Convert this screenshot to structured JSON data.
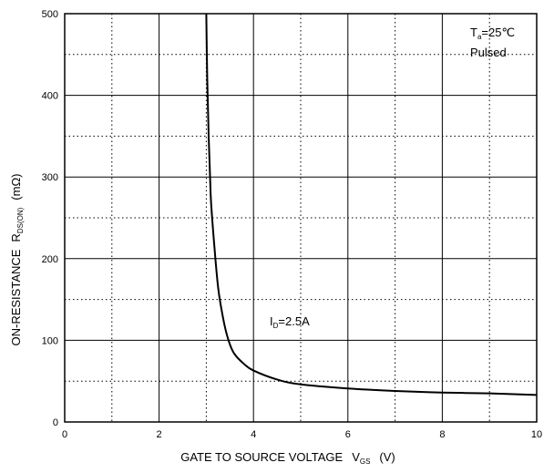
{
  "chart_data": {
    "type": "line",
    "title": "",
    "xlabel": {
      "main": "GATE TO SOURCE VOLTAGE",
      "sym": "V",
      "sub": "GS",
      "unit": "(V)"
    },
    "ylabel": {
      "main": "ON-RESISTANCE",
      "sym": "R",
      "sub": "DS(ON)",
      "unit": "(mΩ)"
    },
    "xlim": [
      0,
      10
    ],
    "ylim": [
      0,
      500
    ],
    "xticks": [
      "0",
      "2",
      "4",
      "6",
      "8",
      "10"
    ],
    "yticks": [
      "0",
      "100",
      "200",
      "300",
      "400",
      "500"
    ],
    "grid": "solid major, dotted minor",
    "conditions": {
      "ta_sym": "T",
      "ta_sub": "a",
      "ta_val": "=25℃",
      "pulsed": "Pulsed"
    },
    "series": [
      {
        "label": {
          "sym": "I",
          "sub": "D",
          "val": "=2.5A"
        },
        "x": [
          3.0,
          3.02,
          3.05,
          3.08,
          3.1,
          3.15,
          3.2,
          3.25,
          3.3,
          3.4,
          3.5,
          3.6,
          3.8,
          4.0,
          4.5,
          5.0,
          6.0,
          7.0,
          8.0,
          9.0,
          10.0
        ],
        "y": [
          500,
          420,
          350,
          300,
          270,
          230,
          195,
          165,
          145,
          115,
          95,
          83,
          71,
          63,
          52,
          46,
          41,
          38,
          36,
          35,
          33
        ]
      }
    ]
  }
}
